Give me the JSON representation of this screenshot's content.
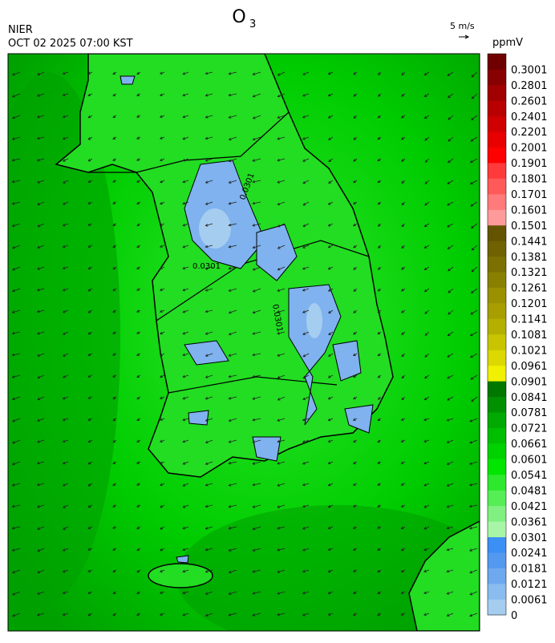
{
  "header": {
    "title": "O",
    "title_subscript": "3",
    "source": "NIER",
    "timestamp": "OCT 02 2025 07:00 KST"
  },
  "wind_reference": {
    "label": "5 m/s"
  },
  "colorbar": {
    "unit": "ppmV",
    "labels": [
      0,
      0.0061,
      0.0121,
      0.0181,
      0.0241,
      0.0301,
      0.0361,
      0.0421,
      0.0481,
      0.0541,
      0.0601,
      0.0661,
      0.0721,
      0.0781,
      0.0841,
      0.0901,
      0.0961,
      0.1021,
      0.1081,
      0.1141,
      0.1201,
      0.1261,
      0.1321,
      0.1381,
      0.1441,
      0.1501,
      0.1601,
      0.1701,
      0.1801,
      0.1901,
      0.2001,
      0.2201,
      0.2401,
      0.2601,
      0.2801,
      0.3001
    ],
    "colors": [
      "#a5cdf0",
      "#8abcf0",
      "#6ea9f0",
      "#5399f0",
      "#3b8ff5",
      "#a8f5a8",
      "#80f080",
      "#55ee55",
      "#2ee82e",
      "#00e600",
      "#00d200",
      "#00be00",
      "#00aa00",
      "#009000",
      "#007800",
      "#f0f000",
      "#dcd800",
      "#c8c400",
      "#b4b000",
      "#a89e00",
      "#9a9000",
      "#8a8000",
      "#7c7000",
      "#706200",
      "#645400",
      "#ff9a9a",
      "#ff7a7a",
      "#ff5a5a",
      "#ff3a3a",
      "#ff0000",
      "#e80000",
      "#d00000",
      "#b80000",
      "#a00000",
      "#880000",
      "#700000"
    ]
  },
  "map": {
    "contour_label": "0.0301"
  }
}
